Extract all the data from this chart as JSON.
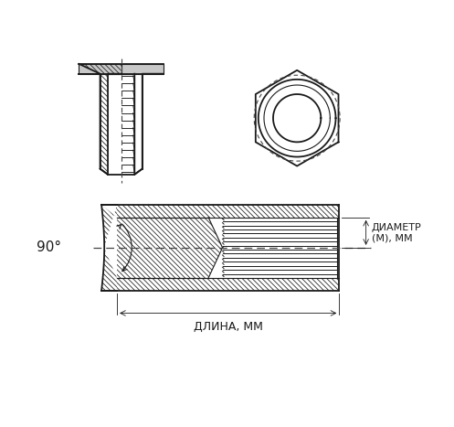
{
  "bg_color": "#ffffff",
  "line_color": "#1a1a1a",
  "hatch_color": "#1a1a1a",
  "gray_color": "#c8c8c8",
  "dash_color": "#444444",
  "text_color": "#1a1a1a",
  "label_90": "90°",
  "label_length": "ДЛИНА, ММ",
  "label_diameter": "ДИАМЕТР\n(М), ММ"
}
